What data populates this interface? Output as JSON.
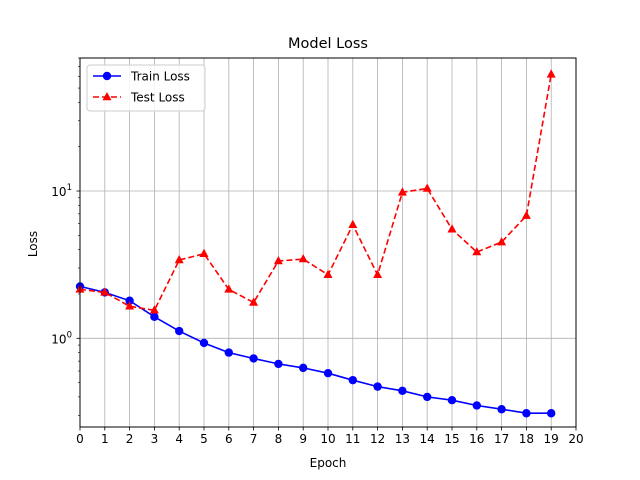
{
  "chart_data": {
    "type": "line",
    "title": "Model Loss",
    "xlabel": "Epoch",
    "ylabel": "Loss",
    "yscale": "log",
    "grid": "vertical and horizontal major",
    "legend_position": "upper-left",
    "xlim": [
      0,
      20
    ],
    "ylim": [
      0.25,
      80
    ],
    "x_ticks": [
      "0",
      "1",
      "2",
      "3",
      "4",
      "5",
      "6",
      "7",
      "8",
      "9",
      "10",
      "11",
      "12",
      "13",
      "14",
      "15",
      "16",
      "17",
      "18",
      "19",
      "20"
    ],
    "y_ticks": [
      {
        "base": "10",
        "exp": "0"
      },
      {
        "base": "10",
        "exp": "1"
      }
    ],
    "x": [
      0,
      1,
      2,
      3,
      4,
      5,
      6,
      7,
      8,
      9,
      10,
      11,
      12,
      13,
      14,
      15,
      16,
      17,
      18,
      19
    ],
    "series": [
      {
        "name": "Train Loss",
        "color": "#0000ff",
        "linestyle": "solid",
        "marker": "circle",
        "values": [
          2.25,
          2.05,
          1.8,
          1.4,
          1.12,
          0.93,
          0.8,
          0.73,
          0.67,
          0.63,
          0.58,
          0.52,
          0.47,
          0.44,
          0.4,
          0.38,
          0.35,
          0.33,
          0.31,
          0.31
        ]
      },
      {
        "name": "Test Loss",
        "color": "#ff0000",
        "linestyle": "dashed",
        "marker": "triangle",
        "values": [
          2.15,
          2.05,
          1.65,
          1.55,
          3.4,
          3.75,
          2.15,
          1.75,
          3.35,
          3.45,
          2.7,
          5.9,
          2.7,
          9.8,
          10.4,
          5.5,
          3.85,
          4.5,
          6.8,
          62
        ]
      }
    ]
  }
}
